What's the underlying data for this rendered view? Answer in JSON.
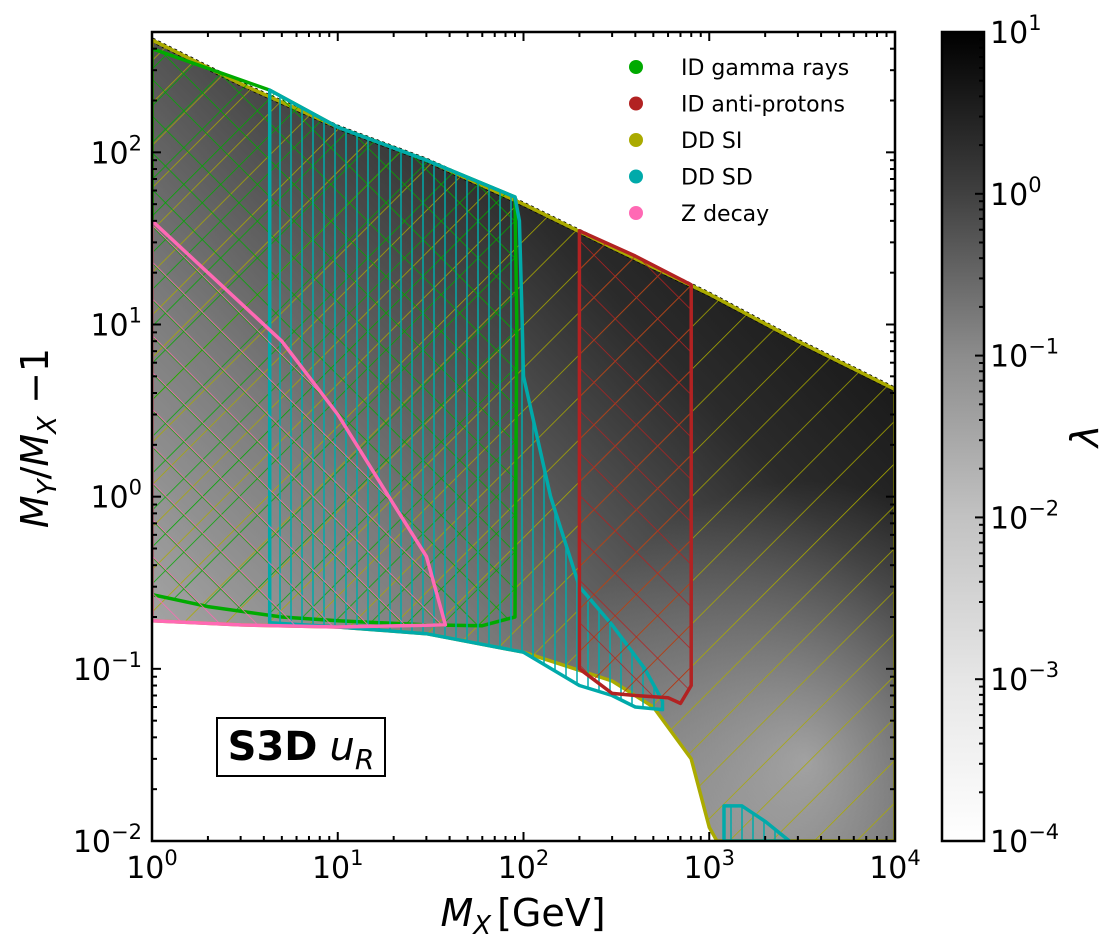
{
  "chart_data": {
    "type": "heatmap",
    "title": "",
    "badge": {
      "bold": "S3D",
      "symbol": "u",
      "subscript": "R"
    },
    "xlabel": {
      "main": "M",
      "sub": "X",
      "unit": "[GeV]"
    },
    "ylabel": {
      "a": "M",
      "a_sub": "Y",
      "slash": "/",
      "b": "M",
      "b_sub": "X",
      "tail": " −1"
    },
    "x_scale": "log",
    "y_scale": "log",
    "xlim": [
      1,
      10000
    ],
    "ylim": [
      0.01,
      500
    ],
    "x_ticks": [
      {
        "value": 1,
        "base": "10",
        "exp": "0"
      },
      {
        "value": 10,
        "base": "10",
        "exp": "1"
      },
      {
        "value": 100,
        "base": "10",
        "exp": "2"
      },
      {
        "value": 1000,
        "base": "10",
        "exp": "3"
      },
      {
        "value": 10000,
        "base": "10",
        "exp": "4"
      }
    ],
    "y_ticks": [
      {
        "value": 0.01,
        "base": "10",
        "exp": "−2"
      },
      {
        "value": 0.1,
        "base": "10",
        "exp": "−1"
      },
      {
        "value": 1,
        "base": "10",
        "exp": "0"
      },
      {
        "value": 10,
        "base": "10",
        "exp": "1"
      },
      {
        "value": 100,
        "base": "10",
        "exp": "2"
      }
    ],
    "colorbar": {
      "label": "λ",
      "scale": "log",
      "range": [
        0.0001,
        10
      ],
      "colormap": "Greys",
      "ticks": [
        {
          "value": 0.0001,
          "base": "10",
          "exp": "−4"
        },
        {
          "value": 0.001,
          "base": "10",
          "exp": "−3"
        },
        {
          "value": 0.01,
          "base": "10",
          "exp": "−2"
        },
        {
          "value": 0.1,
          "base": "10",
          "exp": "−1"
        },
        {
          "value": 1,
          "base": "10",
          "exp": "0"
        },
        {
          "value": 10,
          "base": "10",
          "exp": "1"
        }
      ]
    },
    "heatmap_region": {
      "upper": [
        [
          1,
          450
        ],
        [
          3,
          250
        ],
        [
          10,
          140
        ],
        [
          30,
          90
        ],
        [
          100,
          50
        ],
        [
          300,
          28
        ],
        [
          1000,
          15
        ],
        [
          3000,
          8
        ],
        [
          10000,
          4.2
        ]
      ],
      "lower": [
        [
          1,
          0.19
        ],
        [
          3,
          0.18
        ],
        [
          10,
          0.175
        ],
        [
          30,
          0.16
        ],
        [
          100,
          0.125
        ],
        [
          300,
          0.085
        ],
        [
          500,
          0.06
        ],
        [
          800,
          0.03
        ],
        [
          1000,
          0.012
        ],
        [
          1100,
          0.01
        ],
        [
          10000,
          0.01
        ]
      ]
    },
    "legend": [
      {
        "label": "ID gamma rays",
        "color": "#00aa00"
      },
      {
        "label": "ID anti-protons",
        "color": "#b22222"
      },
      {
        "label": "DD SI",
        "color": "#aaaa00"
      },
      {
        "label": "DD SD",
        "color": "#00aaaa"
      },
      {
        "label": "Z decay",
        "color": "#ff69b4"
      }
    ],
    "series": [
      {
        "name": "DD SI",
        "color": "#aaaa00",
        "hatch": "diag-down",
        "polygon": [
          [
            1,
            450
          ],
          [
            3,
            250
          ],
          [
            10,
            140
          ],
          [
            30,
            90
          ],
          [
            100,
            50
          ],
          [
            300,
            28
          ],
          [
            1000,
            15
          ],
          [
            3000,
            8
          ],
          [
            10000,
            4.2
          ],
          [
            10000,
            0.01
          ],
          [
            1100,
            0.01
          ],
          [
            1000,
            0.012
          ],
          [
            800,
            0.03
          ],
          [
            500,
            0.06
          ],
          [
            300,
            0.085
          ],
          [
            100,
            0.125
          ],
          [
            30,
            0.16
          ],
          [
            10,
            0.175
          ],
          [
            3,
            0.18
          ],
          [
            1,
            0.19
          ]
        ]
      },
      {
        "name": "ID gamma rays",
        "color": "#00aa00",
        "hatch": "cross",
        "polygon": [
          [
            1,
            400
          ],
          [
            4.3,
            230
          ],
          [
            10,
            140
          ],
          [
            30,
            90
          ],
          [
            90,
            55
          ],
          [
            92,
            10
          ],
          [
            90,
            0.2
          ],
          [
            60,
            0.178
          ],
          [
            30,
            0.18
          ],
          [
            10,
            0.19
          ],
          [
            5,
            0.2
          ],
          [
            2,
            0.23
          ],
          [
            1,
            0.27
          ]
        ]
      },
      {
        "name": "DD SD",
        "color": "#00aaaa",
        "hatch": "vertical",
        "polygon": [
          [
            4.3,
            230
          ],
          [
            10,
            140
          ],
          [
            30,
            90
          ],
          [
            90,
            55
          ],
          [
            95,
            40
          ],
          [
            98,
            12
          ],
          [
            100,
            5
          ],
          [
            140,
            1.0
          ],
          [
            200,
            0.3
          ],
          [
            300,
            0.18
          ],
          [
            450,
            0.1
          ],
          [
            560,
            0.065
          ],
          [
            560,
            0.058
          ],
          [
            400,
            0.06
          ],
          [
            300,
            0.07
          ],
          [
            200,
            0.08
          ],
          [
            100,
            0.125
          ],
          [
            30,
            0.16
          ],
          [
            10,
            0.175
          ],
          [
            4.3,
            0.185
          ]
        ]
      },
      {
        "name": "DD SD",
        "color": "#00aaaa",
        "hatch": "vertical",
        "polygon": [
          [
            1200,
            0.016
          ],
          [
            1500,
            0.016
          ],
          [
            2000,
            0.013
          ],
          [
            2700,
            0.01
          ],
          [
            1200,
            0.01
          ]
        ]
      },
      {
        "name": "ID anti-protons",
        "color": "#b22222",
        "hatch": "cross",
        "polygon": [
          [
            200,
            35
          ],
          [
            400,
            25
          ],
          [
            800,
            17
          ],
          [
            800,
            0.08
          ],
          [
            700,
            0.063
          ],
          [
            600,
            0.068
          ],
          [
            400,
            0.07
          ],
          [
            300,
            0.072
          ],
          [
            200,
            0.1
          ]
        ]
      },
      {
        "name": "Z decay",
        "color": "#ff69b4",
        "hatch": "diag-up",
        "polygon": [
          [
            1,
            40
          ],
          [
            2,
            20
          ],
          [
            5,
            8
          ],
          [
            10,
            3.0
          ],
          [
            20,
            0.9
          ],
          [
            30,
            0.45
          ],
          [
            38,
            0.18
          ],
          [
            10,
            0.175
          ],
          [
            3,
            0.18
          ],
          [
            1,
            0.19
          ]
        ]
      }
    ]
  }
}
